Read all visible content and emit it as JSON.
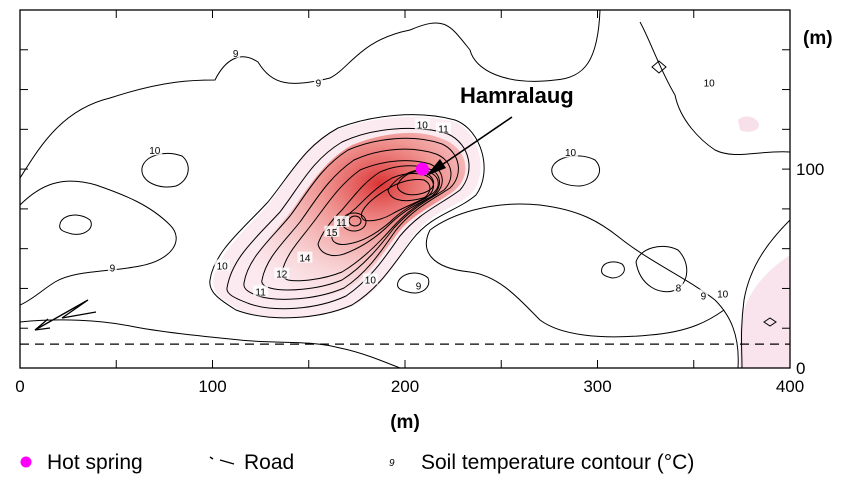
{
  "map": {
    "x_axis": {
      "unit": "(m)",
      "range": [
        0,
        400
      ],
      "ticks": [
        {
          "value": 0,
          "label": "0"
        },
        {
          "value": 100,
          "label": "100"
        },
        {
          "value": 200,
          "label": "200"
        },
        {
          "value": 300,
          "label": "300"
        },
        {
          "value": 400,
          "label": "400"
        }
      ]
    },
    "y_axis": {
      "unit": "(m)",
      "range": [
        0,
        180
      ],
      "position": "right",
      "ticks": [
        {
          "value": 0,
          "label": "0"
        },
        {
          "value": 100,
          "label": "100"
        }
      ]
    },
    "site": {
      "name": "Hamralaug",
      "x": 209,
      "y": 100,
      "color": "#ff00ff"
    },
    "road_y": 12,
    "contour_labels": [
      {
        "text": "9",
        "x": 112,
        "y": 158
      },
      {
        "text": "9",
        "x": 155,
        "y": 143
      },
      {
        "text": "10",
        "x": 70,
        "y": 109
      },
      {
        "text": "10",
        "x": 209,
        "y": 122
      },
      {
        "text": "11",
        "x": 220,
        "y": 120
      },
      {
        "text": "10",
        "x": 286,
        "y": 108
      },
      {
        "text": "10",
        "x": 358,
        "y": 143
      },
      {
        "text": "9",
        "x": 48,
        "y": 50
      },
      {
        "text": "10",
        "x": 105,
        "y": 51
      },
      {
        "text": "11",
        "x": 125,
        "y": 38
      },
      {
        "text": "12",
        "x": 136,
        "y": 47
      },
      {
        "text": "14",
        "x": 148,
        "y": 55
      },
      {
        "text": "15",
        "x": 162,
        "y": 68
      },
      {
        "text": "11",
        "x": 167,
        "y": 73
      },
      {
        "text": "10",
        "x": 182,
        "y": 44
      },
      {
        "text": "9",
        "x": 207,
        "y": 41
      },
      {
        "text": "8",
        "x": 342,
        "y": 40
      },
      {
        "text": "9",
        "x": 355,
        "y": 36
      },
      {
        "text": "10",
        "x": 365,
        "y": 37
      }
    ],
    "colors": {
      "hot_spring": "#ff00ff",
      "anomaly": "#e03a3a"
    }
  },
  "legend": {
    "hot_spring": "Hot spring",
    "road": "Road",
    "contour_symbol": "9",
    "contour": "Soil temperature contour (°C)"
  }
}
